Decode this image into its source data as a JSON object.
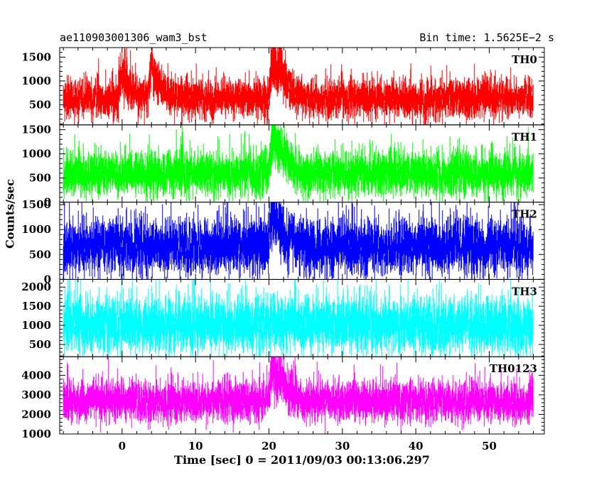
{
  "header": {
    "title": "ae110903001306_wam3_bst",
    "bin_time": "Bin time: 1.5625E−2 s"
  },
  "chart_data": {
    "type": "line",
    "xlabel": "Time [sec] 0 = 2011/09/03 00:13:06.297",
    "ylabel": "Counts/sec",
    "xlim": [
      -8.5,
      57.5
    ],
    "xticks": [
      0,
      10,
      20,
      30,
      40,
      50
    ],
    "x_data_range": [
      -8,
      56
    ],
    "bin_time_s": 0.015625,
    "panels": [
      {
        "label": "TH0",
        "color": "#ff0000",
        "ylim": [
          80,
          1700
        ],
        "yticks": [
          500,
          1000,
          1500
        ],
        "baseline_mean": 650,
        "noise_sd": 170,
        "features": [
          {
            "t": 0,
            "peak": 1350
          },
          {
            "t": 4,
            "peak": 1400
          },
          {
            "t": 20.5,
            "peak": 1700
          },
          {
            "t": 21.5,
            "peak": 1500
          }
        ]
      },
      {
        "label": "TH1",
        "color": "#00ff00",
        "ylim": [
          0,
          1600
        ],
        "yticks": [
          0,
          500,
          1000,
          1500
        ],
        "baseline_mean": 620,
        "noise_sd": 190,
        "features": [
          {
            "t": 20.5,
            "peak": 1600
          },
          {
            "t": 21.5,
            "peak": 1350
          }
        ]
      },
      {
        "label": "TH2",
        "color": "#0000ff",
        "ylim": [
          0,
          1550
        ],
        "yticks": [
          0,
          500,
          1000,
          1500
        ],
        "baseline_mean": 690,
        "noise_sd": 230,
        "features": [
          {
            "t": 20.5,
            "peak": 1550
          }
        ]
      },
      {
        "label": "TH3",
        "color": "#00ffff",
        "ylim": [
          180,
          2200
        ],
        "yticks": [
          500,
          1000,
          1500,
          2000
        ],
        "baseline_mean": 1050,
        "noise_sd": 300,
        "features": []
      },
      {
        "label": "TH0123",
        "color": "#ff00ff",
        "ylim": [
          1000,
          4950
        ],
        "yticks": [
          1000,
          2000,
          3000,
          4000
        ],
        "baseline_mean": 2750,
        "noise_sd": 430,
        "features": [
          {
            "t": 20.5,
            "peak": 4950
          },
          {
            "t": 21.5,
            "peak": 4500
          }
        ]
      }
    ]
  }
}
